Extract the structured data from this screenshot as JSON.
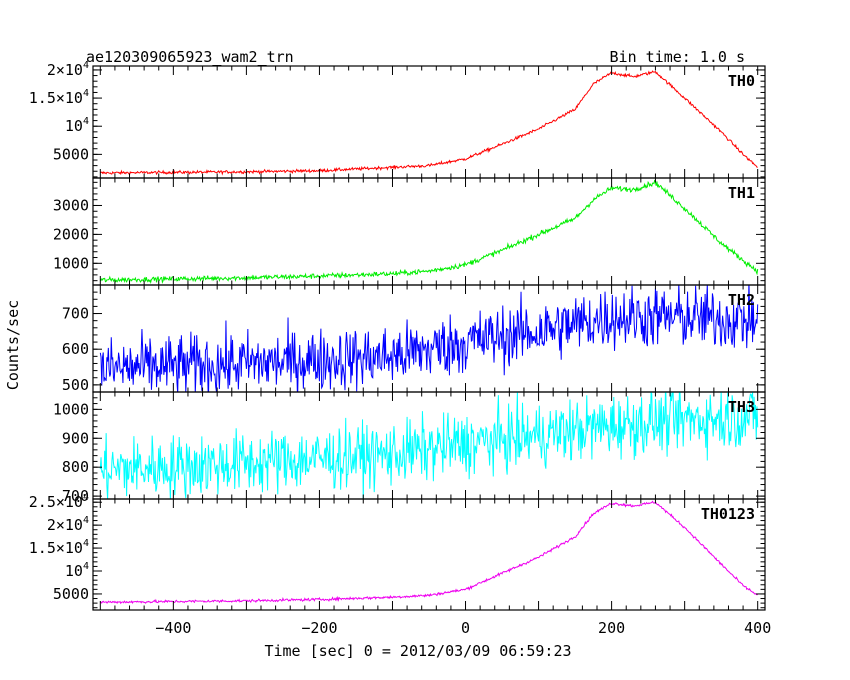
{
  "chart_data": {
    "type": "line",
    "title": "ae120309065923_wam2_trn",
    "subtitle": "Bin time: 1.0 s",
    "xlabel": "Time [sec] 0 = 2012/03/09 06:59:23",
    "ylabel": "Counts/sec",
    "xlim": [
      -510,
      410
    ],
    "xticks": [
      -400,
      -200,
      0,
      200,
      400
    ],
    "xtick_labels": [
      "−400",
      "−200",
      "0",
      "200",
      "400"
    ],
    "grid": false,
    "panels": [
      {
        "name": "TH0",
        "color": "#ff0000",
        "ylim": [
          800,
          20700
        ],
        "yticks": [
          5000,
          10000,
          15000,
          20000
        ],
        "ytick_labels": [
          {
            "mant": "",
            "exp": "",
            "plain": "5000"
          },
          {
            "mant": "10",
            "exp": "4",
            "plain": ""
          },
          {
            "mant": "1.5×10",
            "exp": "4",
            "plain": ""
          },
          {
            "mant": "2×10",
            "exp": "4",
            "plain": ""
          }
        ],
        "noise": 180,
        "knots": [
          [
            -500,
            1700
          ],
          [
            -300,
            1900
          ],
          [
            -200,
            2100
          ],
          [
            -100,
            2700
          ],
          [
            -50,
            3000
          ],
          [
            0,
            4200
          ],
          [
            50,
            6800
          ],
          [
            100,
            9500
          ],
          [
            150,
            13000
          ],
          [
            175,
            17500
          ],
          [
            200,
            19500
          ],
          [
            230,
            18800
          ],
          [
            260,
            19700
          ],
          [
            300,
            15000
          ],
          [
            350,
            9000
          ],
          [
            380,
            5000
          ],
          [
            400,
            2700
          ]
        ]
      },
      {
        "name": "TH1",
        "color": "#00ee00",
        "ylim": [
          250,
          3950
        ],
        "yticks": [
          1000,
          2000,
          3000
        ],
        "ytick_labels": [
          {
            "mant": "",
            "exp": "",
            "plain": "1000"
          },
          {
            "mant": "",
            "exp": "",
            "plain": "2000"
          },
          {
            "mant": "",
            "exp": "",
            "plain": "3000"
          }
        ],
        "noise": 60,
        "knots": [
          [
            -500,
            420
          ],
          [
            -300,
            500
          ],
          [
            -200,
            560
          ],
          [
            -100,
            640
          ],
          [
            -50,
            730
          ],
          [
            0,
            950
          ],
          [
            50,
            1450
          ],
          [
            100,
            2000
          ],
          [
            150,
            2550
          ],
          [
            175,
            3200
          ],
          [
            200,
            3600
          ],
          [
            230,
            3550
          ],
          [
            260,
            3800
          ],
          [
            300,
            2900
          ],
          [
            350,
            1700
          ],
          [
            380,
            1100
          ],
          [
            400,
            730
          ]
        ]
      },
      {
        "name": "TH2",
        "color": "#0000ff",
        "ylim": [
          480,
          780
        ],
        "yticks": [
          500,
          600,
          700
        ],
        "ytick_labels": [
          {
            "mant": "",
            "exp": "",
            "plain": "500"
          },
          {
            "mant": "",
            "exp": "",
            "plain": "600"
          },
          {
            "mant": "",
            "exp": "",
            "plain": "700"
          }
        ],
        "noise": 60,
        "knots": [
          [
            -500,
            545
          ],
          [
            -300,
            560
          ],
          [
            -100,
            580
          ],
          [
            0,
            620
          ],
          [
            100,
            650
          ],
          [
            200,
            690
          ],
          [
            300,
            690
          ],
          [
            400,
            680
          ]
        ]
      },
      {
        "name": "TH3",
        "color": "#00ffff",
        "ylim": [
          690,
          1060
        ],
        "yticks": [
          700,
          800,
          900,
          1000
        ],
        "ytick_labels": [
          {
            "mant": "",
            "exp": "",
            "plain": "700"
          },
          {
            "mant": "",
            "exp": "",
            "plain": "800"
          },
          {
            "mant": "",
            "exp": "",
            "plain": "900"
          },
          {
            "mant": "",
            "exp": "",
            "plain": "1000"
          }
        ],
        "noise": 75,
        "knots": [
          [
            -500,
            790
          ],
          [
            -300,
            815
          ],
          [
            -100,
            845
          ],
          [
            0,
            880
          ],
          [
            100,
            910
          ],
          [
            200,
            945
          ],
          [
            300,
            965
          ],
          [
            400,
            975
          ]
        ]
      },
      {
        "name": "TH0123",
        "color": "#ee00ee",
        "ylim": [
          1500,
          25700
        ],
        "yticks": [
          5000,
          10000,
          15000,
          20000,
          25000
        ],
        "ytick_labels": [
          {
            "mant": "",
            "exp": "",
            "plain": "5000"
          },
          {
            "mant": "10",
            "exp": "4",
            "plain": ""
          },
          {
            "mant": "1.5×10",
            "exp": "4",
            "plain": ""
          },
          {
            "mant": "2×10",
            "exp": "4",
            "plain": ""
          },
          {
            "mant": "2.5×10",
            "exp": "4",
            "plain": ""
          }
        ],
        "noise": 200,
        "knots": [
          [
            -500,
            3200
          ],
          [
            -300,
            3500
          ],
          [
            -200,
            3800
          ],
          [
            -100,
            4300
          ],
          [
            -50,
            4700
          ],
          [
            0,
            6000
          ],
          [
            50,
            9500
          ],
          [
            100,
            13000
          ],
          [
            150,
            17500
          ],
          [
            175,
            22500
          ],
          [
            200,
            24800
          ],
          [
            230,
            24200
          ],
          [
            260,
            25000
          ],
          [
            300,
            19500
          ],
          [
            350,
            11500
          ],
          [
            380,
            6800
          ],
          [
            400,
            4700
          ]
        ]
      }
    ]
  }
}
